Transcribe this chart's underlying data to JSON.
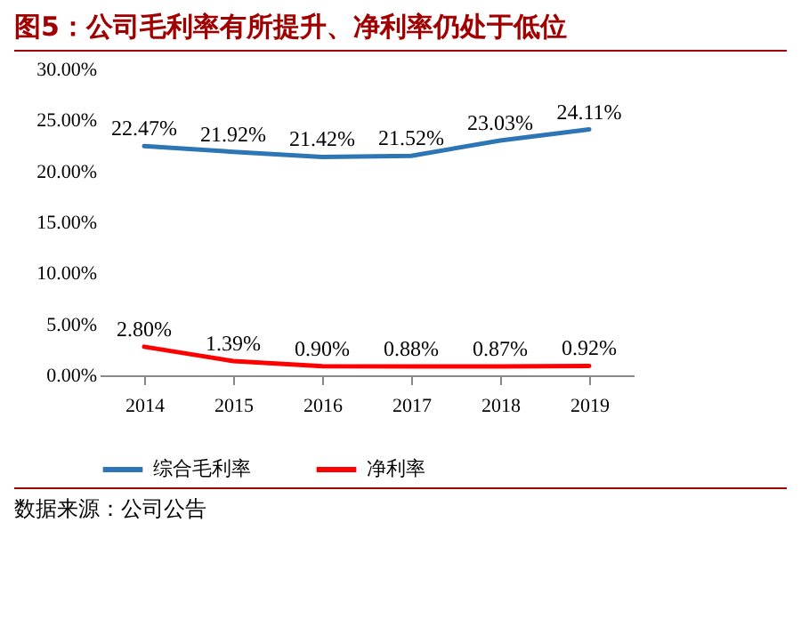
{
  "chart_data": {
    "type": "line",
    "title": "图5：公司毛利率有所提升、净利率仍处于低位",
    "categories": [
      "2014",
      "2015",
      "2016",
      "2017",
      "2018",
      "2019"
    ],
    "series": [
      {
        "name": "综合毛利率",
        "color": "#2e75b6",
        "values": [
          22.47,
          21.92,
          21.42,
          21.52,
          23.03,
          24.11
        ],
        "value_labels": [
          "22.47%",
          "21.92%",
          "21.42%",
          "21.52%",
          "23.03%",
          "24.11%"
        ]
      },
      {
        "name": "净利率",
        "color": "#ff0000",
        "values": [
          2.8,
          1.39,
          0.9,
          0.88,
          0.87,
          0.92
        ],
        "value_labels": [
          "2.80%",
          "1.39%",
          "0.90%",
          "0.88%",
          "0.87%",
          "0.92%"
        ]
      }
    ],
    "ylim": [
      0,
      30
    ],
    "yticks": [
      {
        "value": 0,
        "label": "0.00%"
      },
      {
        "value": 5,
        "label": "5.00%"
      },
      {
        "value": 10,
        "label": "10.00%"
      },
      {
        "value": 15,
        "label": "15.00%"
      },
      {
        "value": 20,
        "label": "20.00%"
      },
      {
        "value": 25,
        "label": "25.00%"
      },
      {
        "value": 30,
        "label": "30.00%"
      }
    ],
    "grid": false,
    "legend": "bottom",
    "annotations": [
      "数据来源：公司公告"
    ]
  }
}
